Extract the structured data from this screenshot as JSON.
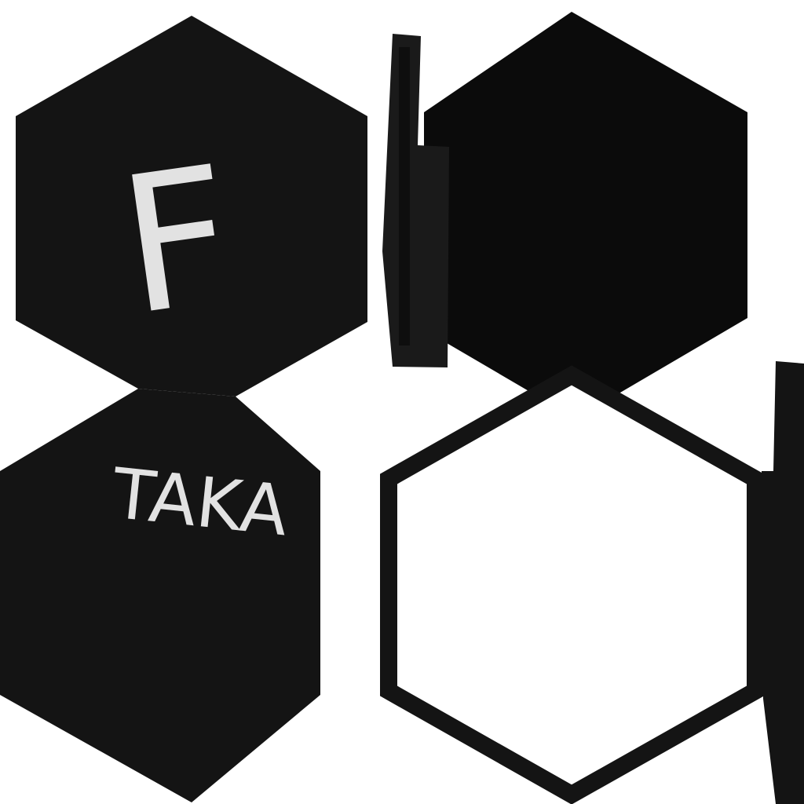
{
  "texts": [
    "F",
    "TAKA"
  ]
}
